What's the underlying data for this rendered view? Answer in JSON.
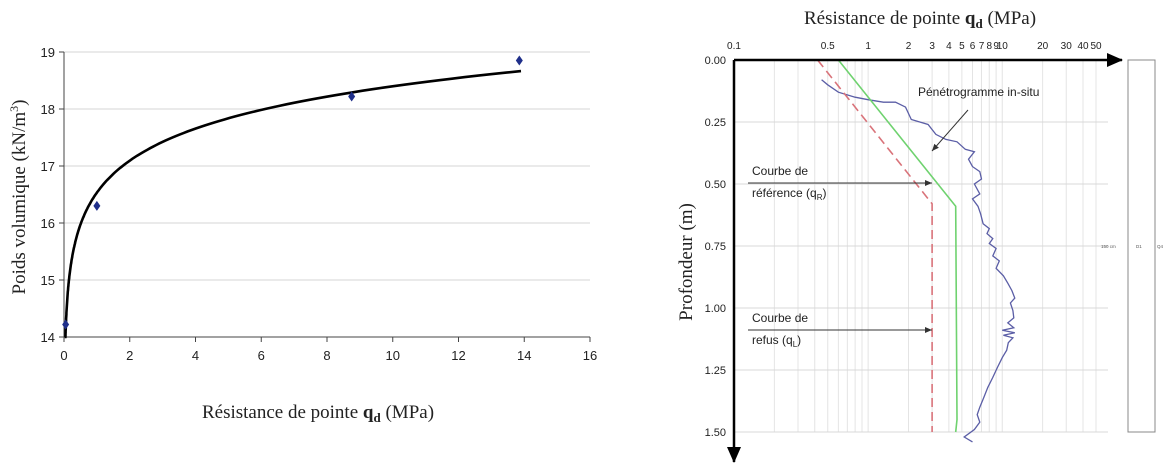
{
  "chart_data": [
    {
      "type": "scatter",
      "xlabel_prefix": "Résistance de pointe ",
      "xlabel_symbol": "q",
      "xlabel_sub": "d",
      "xlabel_suffix": " (MPa)",
      "ylabel_prefix": "Poids volumique (kN/m",
      "ylabel_sup": "3",
      "ylabel_suffix": ")",
      "xlim": [
        0,
        16
      ],
      "ylim": [
        14,
        19
      ],
      "xticks": [
        0,
        2,
        4,
        6,
        8,
        10,
        12,
        14,
        16
      ],
      "yticks": [
        14,
        15,
        16,
        17,
        18,
        19
      ],
      "grid": "horizontal",
      "points": [
        {
          "x": 0.05,
          "y": 14.22
        },
        {
          "x": 1.0,
          "y": 16.3
        },
        {
          "x": 8.75,
          "y": 18.22
        },
        {
          "x": 13.85,
          "y": 18.85
        }
      ],
      "trend": {
        "type": "logarithmic",
        "x_range": [
          0.02,
          13.9
        ]
      },
      "colors": {
        "points": "#1f2f8a",
        "trend": "#000000"
      }
    },
    {
      "type": "line",
      "title_prefix": "Résistance de pointe ",
      "title_symbol": "q",
      "title_sub": "d",
      "title_suffix": " (MPa)",
      "ylabel": "Profondeur (m)",
      "x_scale": "log",
      "xlim": [
        0.1,
        50
      ],
      "ylim": [
        0,
        1.5
      ],
      "y_inverted": true,
      "xtick_labels": [
        {
          "v": 0.1,
          "t": "0.1"
        },
        {
          "v": 0.5,
          "t": "0.5"
        },
        {
          "v": 1,
          "t": "1"
        },
        {
          "v": 2,
          "t": "2"
        },
        {
          "v": 3,
          "t": "3"
        },
        {
          "v": 4,
          "t": "4"
        },
        {
          "v": 5,
          "t": "5"
        },
        {
          "v": 6,
          "t": "6"
        },
        {
          "v": 7,
          "t": "7"
        },
        {
          "v": 8,
          "t": "8"
        },
        {
          "v": 9,
          "t": "9"
        },
        {
          "v": 10,
          "t": "10"
        },
        {
          "v": 20,
          "t": "20"
        },
        {
          "v": 30,
          "t": "30"
        },
        {
          "v": 40,
          "t": "40"
        },
        {
          "v": 50,
          "t": "50"
        }
      ],
      "yticks": [
        "0.00",
        "0.25",
        "0.50",
        "0.75",
        "1.00",
        "1.25",
        "1.50"
      ],
      "series": [
        {
          "name": "Pénétrogramme in-situ",
          "color": "#5b5ea6",
          "style": "solid",
          "points": [
            [
              0.45,
              0.08
            ],
            [
              0.5,
              0.1
            ],
            [
              0.6,
              0.13
            ],
            [
              0.8,
              0.15
            ],
            [
              1.0,
              0.16
            ],
            [
              1.3,
              0.17
            ],
            [
              1.6,
              0.17
            ],
            [
              1.9,
              0.19
            ],
            [
              2.1,
              0.24
            ],
            [
              2.8,
              0.26
            ],
            [
              3.2,
              0.3
            ],
            [
              3.8,
              0.32
            ],
            [
              4.6,
              0.33
            ],
            [
              5.3,
              0.36
            ],
            [
              6.2,
              0.37
            ],
            [
              5.6,
              0.4
            ],
            [
              6.0,
              0.43
            ],
            [
              6.8,
              0.45
            ],
            [
              7.0,
              0.48
            ],
            [
              6.2,
              0.5
            ],
            [
              6.8,
              0.54
            ],
            [
              6.0,
              0.56
            ],
            [
              6.6,
              0.59
            ],
            [
              6.9,
              0.62
            ],
            [
              7.2,
              0.66
            ],
            [
              8.0,
              0.68
            ],
            [
              7.7,
              0.7
            ],
            [
              8.5,
              0.72
            ],
            [
              8.0,
              0.74
            ],
            [
              9.0,
              0.76
            ],
            [
              8.5,
              0.79
            ],
            [
              9.5,
              0.81
            ],
            [
              9.0,
              0.84
            ],
            [
              10.2,
              0.87
            ],
            [
              11.0,
              0.9
            ],
            [
              11.8,
              0.93
            ],
            [
              12.4,
              0.96
            ],
            [
              11.5,
              0.98
            ],
            [
              12.0,
              1.01
            ],
            [
              12.2,
              1.04
            ],
            [
              11.0,
              1.06
            ],
            [
              12.2,
              1.08
            ],
            [
              10.0,
              1.09
            ],
            [
              12.4,
              1.1
            ],
            [
              10.2,
              1.11
            ],
            [
              12.0,
              1.12
            ],
            [
              11.1,
              1.14
            ],
            [
              10.8,
              1.17
            ],
            [
              10.0,
              1.2
            ],
            [
              9.2,
              1.24
            ],
            [
              8.5,
              1.28
            ],
            [
              7.8,
              1.32
            ],
            [
              7.3,
              1.36
            ],
            [
              6.8,
              1.4
            ],
            [
              6.5,
              1.43
            ],
            [
              6.8,
              1.46
            ],
            [
              6.2,
              1.49
            ],
            [
              5.2,
              1.52
            ],
            [
              6.0,
              1.54
            ]
          ]
        },
        {
          "name": "Courbe de référence (q_R)",
          "color": "#6fd26f",
          "style": "solid",
          "points": [
            [
              0.6,
              0.0
            ],
            [
              4.5,
              0.59
            ],
            [
              4.6,
              1.45
            ],
            [
              4.5,
              1.5
            ]
          ]
        },
        {
          "name": "Courbe de refus (q_L)",
          "color": "#d9737a",
          "style": "dashed",
          "points": [
            [
              0.42,
              0.0
            ],
            [
              3.0,
              0.58
            ],
            [
              3.0,
              1.5
            ]
          ]
        }
      ],
      "annotations": [
        {
          "text": "Pénétrogramme in-situ"
        },
        {
          "lines": [
            "Courbe de",
            "référence (q",
            "R",
            ")"
          ]
        },
        {
          "lines": [
            "Courbe de",
            "refus (q",
            "L",
            ")"
          ]
        }
      ],
      "side_column": {
        "labels": [
          "150 cm",
          "D1",
          "Q4"
        ]
      }
    }
  ]
}
